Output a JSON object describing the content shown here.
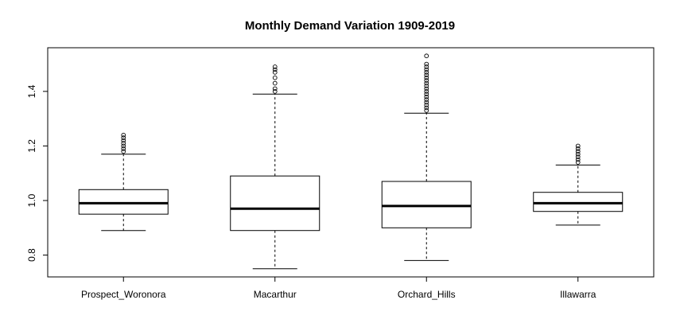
{
  "chart_data": {
    "type": "boxplot",
    "title": "Monthly Demand Variation 1909-2019",
    "xlabel": "",
    "ylabel": "",
    "ylim": [
      0.72,
      1.56
    ],
    "yticks": [
      0.8,
      1.0,
      1.2,
      1.4
    ],
    "ytick_labels": [
      "0.8",
      "1.0",
      "1.2",
      "1.4"
    ],
    "grid": false,
    "legend": "none",
    "categories": [
      "Prospect_Woronora",
      "Macarthur",
      "Orchard_Hills",
      "Illawarra"
    ],
    "boxes": [
      {
        "name": "Prospect_Woronora",
        "whisker_low": 0.89,
        "q1": 0.95,
        "median": 0.99,
        "q3": 1.04,
        "whisker_high": 1.17,
        "outliers": [
          1.18,
          1.19,
          1.2,
          1.21,
          1.22,
          1.23,
          1.24
        ]
      },
      {
        "name": "Macarthur",
        "whisker_low": 0.75,
        "q1": 0.89,
        "median": 0.97,
        "q3": 1.09,
        "whisker_high": 1.39,
        "outliers": [
          1.4,
          1.41,
          1.43,
          1.45,
          1.47,
          1.48,
          1.49
        ]
      },
      {
        "name": "Orchard_Hills",
        "whisker_low": 0.78,
        "q1": 0.9,
        "median": 0.98,
        "q3": 1.07,
        "whisker_high": 1.32,
        "outliers": [
          1.33,
          1.34,
          1.35,
          1.36,
          1.37,
          1.38,
          1.39,
          1.4,
          1.41,
          1.42,
          1.43,
          1.44,
          1.45,
          1.46,
          1.47,
          1.48,
          1.49,
          1.5,
          1.53
        ]
      },
      {
        "name": "Illawarra",
        "whisker_low": 0.91,
        "q1": 0.96,
        "median": 0.99,
        "q3": 1.03,
        "whisker_high": 1.13,
        "outliers": [
          1.14,
          1.15,
          1.16,
          1.17,
          1.18,
          1.19,
          1.2
        ]
      }
    ]
  }
}
